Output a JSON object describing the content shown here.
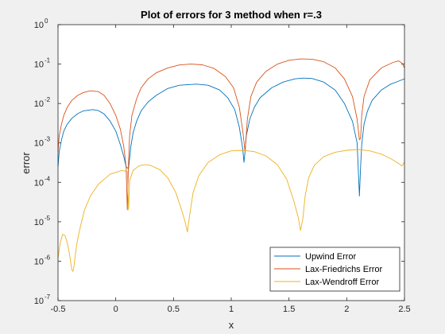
{
  "chart_data": {
    "type": "line",
    "title": "Plot of errors for 3 method when r=.3",
    "xlabel": "x",
    "ylabel": "error",
    "xlim": [
      -0.5,
      2.5
    ],
    "ylim": [
      1e-07,
      1
    ],
    "yscale": "log",
    "grid": false,
    "legend_position": "bottom-right",
    "xticks": [
      -0.5,
      0,
      0.5,
      1,
      1.5,
      2,
      2.5
    ],
    "xtick_labels": [
      "-0.5",
      "0",
      "0.5",
      "1",
      "1.5",
      "2",
      "2.5"
    ],
    "yticks": [
      1e-07,
      1e-06,
      1e-05,
      0.0001,
      0.001,
      0.01,
      0.1,
      1
    ],
    "ytick_exponents": [
      "-7",
      "-6",
      "-5",
      "-4",
      "-3",
      "-2",
      "-1",
      "0"
    ],
    "ytick_base": "10",
    "series": [
      {
        "name": "Upwind Error",
        "color": "#0072BD",
        "x": [
          -0.5,
          -0.49,
          -0.47,
          -0.45,
          -0.42,
          -0.38,
          -0.33,
          -0.28,
          -0.2,
          -0.15,
          -0.1,
          -0.05,
          0,
          0.04,
          0.07,
          0.09,
          0.11,
          0.12,
          0.13,
          0.15,
          0.18,
          0.22,
          0.28,
          0.35,
          0.45,
          0.55,
          0.7,
          0.8,
          0.9,
          0.97,
          1.03,
          1.07,
          1.1,
          1.11,
          1.12,
          1.13,
          1.16,
          1.2,
          1.25,
          1.35,
          1.45,
          1.55,
          1.62,
          1.7,
          1.8,
          1.9,
          1.98,
          2.05,
          2.09,
          2.11,
          2.12,
          2.13,
          2.15,
          2.18,
          2.22,
          2.3,
          2.38,
          2.45,
          2.5
        ],
        "y": [
          0.00025,
          0.0006,
          0.0012,
          0.002,
          0.003,
          0.0042,
          0.0055,
          0.0065,
          0.007,
          0.0066,
          0.0054,
          0.0036,
          0.002,
          0.0009,
          0.00045,
          0.00025,
          0.00022,
          0.0004,
          0.0008,
          0.0018,
          0.0035,
          0.0065,
          0.011,
          0.016,
          0.024,
          0.029,
          0.031,
          0.029,
          0.022,
          0.014,
          0.007,
          0.0025,
          0.0007,
          0.00032,
          0.0006,
          0.0015,
          0.004,
          0.008,
          0.014,
          0.025,
          0.035,
          0.042,
          0.044,
          0.043,
          0.035,
          0.022,
          0.01,
          0.0035,
          0.001,
          4.5e-05,
          0.00025,
          0.0009,
          0.003,
          0.0065,
          0.012,
          0.022,
          0.031,
          0.037,
          0.042
        ]
      },
      {
        "name": "Lax-Friedrichs Error",
        "color": "#D95319",
        "x": [
          -0.5,
          -0.49,
          -0.47,
          -0.45,
          -0.42,
          -0.38,
          -0.33,
          -0.28,
          -0.22,
          -0.15,
          -0.1,
          -0.05,
          0,
          0.04,
          0.07,
          0.09,
          0.1,
          0.11,
          0.12,
          0.14,
          0.18,
          0.22,
          0.28,
          0.35,
          0.45,
          0.55,
          0.65,
          0.75,
          0.85,
          0.95,
          1.02,
          1.07,
          1.1,
          1.12,
          1.14,
          1.17,
          1.22,
          1.3,
          1.4,
          1.5,
          1.6,
          1.7,
          1.8,
          1.9,
          1.98,
          2.05,
          2.09,
          2.11,
          2.12,
          2.13,
          2.15,
          2.2,
          2.3,
          2.4,
          2.45,
          2.48,
          2.5
        ],
        "y": [
          0.0006,
          0.0015,
          0.003,
          0.005,
          0.008,
          0.012,
          0.016,
          0.019,
          0.021,
          0.02,
          0.016,
          0.01,
          0.005,
          0.0022,
          0.0008,
          0.00025,
          2e-05,
          0.0003,
          0.0015,
          0.005,
          0.013,
          0.025,
          0.042,
          0.06,
          0.08,
          0.095,
          0.1,
          0.096,
          0.078,
          0.048,
          0.025,
          0.008,
          0.002,
          0.0006,
          0.004,
          0.015,
          0.035,
          0.065,
          0.1,
          0.125,
          0.135,
          0.133,
          0.115,
          0.08,
          0.042,
          0.015,
          0.004,
          0.0012,
          0.0013,
          0.005,
          0.015,
          0.04,
          0.08,
          0.11,
          0.12,
          0.105,
          0.08
        ]
      },
      {
        "name": "Lax-Wendroff Error",
        "color": "#EDB120",
        "x": [
          -0.5,
          -0.48,
          -0.46,
          -0.44,
          -0.42,
          -0.4,
          -0.38,
          -0.37,
          -0.36,
          -0.34,
          -0.32,
          -0.3,
          -0.27,
          -0.22,
          -0.15,
          -0.05,
          0.05,
          0.1,
          0.11,
          0.12,
          0.15,
          0.2,
          0.25,
          0.3,
          0.38,
          0.45,
          0.52,
          0.57,
          0.6,
          0.62,
          0.64,
          0.67,
          0.72,
          0.8,
          0.9,
          1,
          1.1,
          1.2,
          1.3,
          1.4,
          1.48,
          1.54,
          1.58,
          1.6,
          1.62,
          1.64,
          1.67,
          1.72,
          1.8,
          1.9,
          2,
          2.1,
          2.2,
          2.3,
          2.38,
          2.45,
          2.48,
          2.5
        ],
        "y": [
          1.2e-06,
          3e-06,
          4.8e-06,
          4.5e-06,
          3e-06,
          1.5e-06,
          6e-07,
          5.5e-07,
          8e-07,
          2.5e-06,
          5e-06,
          9e-06,
          2e-05,
          4.5e-05,
          9e-05,
          0.00016,
          0.0002,
          0.00019,
          2e-05,
          0.00011,
          0.0002,
          0.00026,
          0.00028,
          0.00027,
          0.00021,
          0.00013,
          5.5e-05,
          2e-05,
          1e-05,
          5.5e-06,
          1.5e-05,
          5.5e-05,
          0.00015,
          0.00032,
          0.0005,
          0.00063,
          0.00065,
          0.0006,
          0.00047,
          0.00028,
          0.00012,
          3.5e-05,
          1.3e-05,
          6e-06,
          1.2e-05,
          4.5e-05,
          0.00013,
          0.00027,
          0.00045,
          0.00058,
          0.00065,
          0.00068,
          0.00063,
          0.00052,
          0.0004,
          0.0003,
          0.00026,
          0.00033
        ]
      }
    ]
  }
}
